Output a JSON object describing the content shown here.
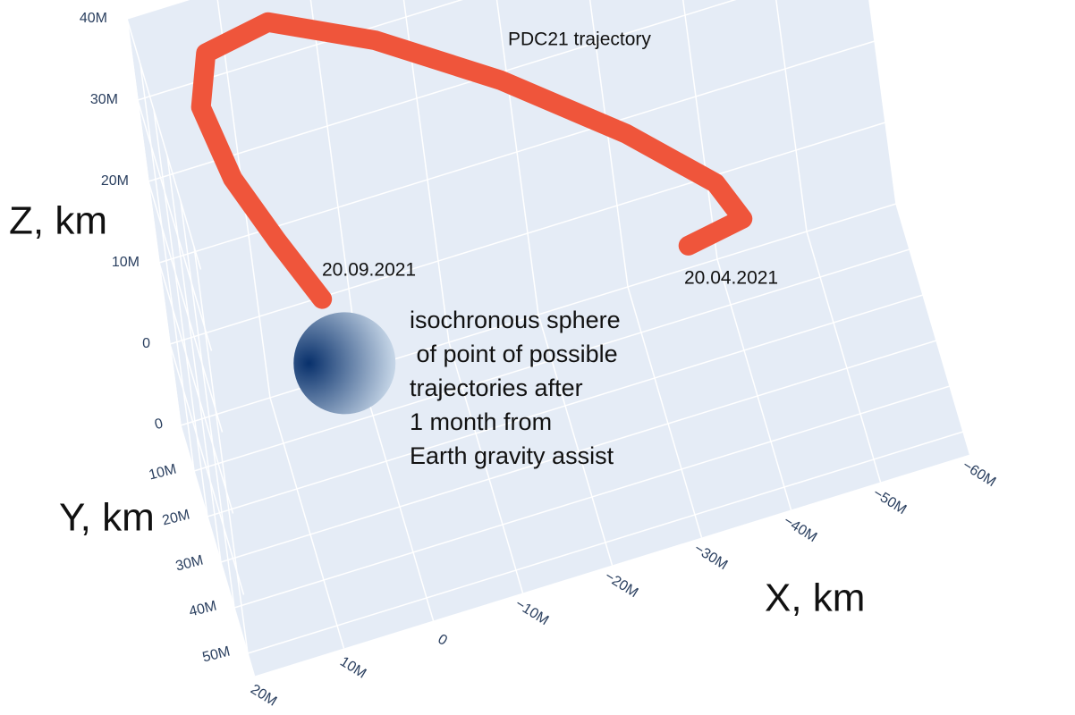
{
  "chart_data": {
    "type": "line3d",
    "series": [
      {
        "name": "PDC21 trajectory",
        "color": "#ef553b",
        "x": [
          -35500000,
          -41700000,
          -39300000,
          -30400000,
          -17700000,
          -4800000,
          6500000,
          13600000,
          14900000,
          12500000,
          8600000,
          4600000
        ],
        "y": [
          20000000,
          20000000,
          20000000,
          20000000,
          20000000,
          20000000,
          20000000,
          20000000,
          20000000,
          20000000,
          20000000,
          20000000
        ],
        "z": [
          4400000,
          5600000,
          10800000,
          19900000,
          30800000,
          40100000,
          46200000,
          44800000,
          38600000,
          29000000,
          20000000,
          11500000
        ]
      }
    ],
    "sphere": {
      "x": 3100000,
      "y": 20000000,
      "z": 3100000,
      "radius": 5700000,
      "colors": [
        "#08306b",
        "#deebf7"
      ]
    },
    "annotations": [
      "20.09.2021",
      "20.04.2021"
    ],
    "note": [
      "isochronous sphere",
      " of point of possible",
      "trajectories after",
      "1 month from",
      "Earth gravity assist"
    ],
    "xlabel": "X, km",
    "ylabel": "Y, km",
    "zlabel": "Z, km",
    "xlim": [
      -60000000,
      20000000
    ],
    "ylim": [
      0,
      55000000
    ],
    "zlim": [
      -10000000,
      40000000
    ],
    "xticks": [
      {
        "value": -60000000,
        "label": "−60M"
      },
      {
        "value": -50000000,
        "label": "−50M"
      },
      {
        "value": -40000000,
        "label": "−40M"
      },
      {
        "value": -30000000,
        "label": "−30M"
      },
      {
        "value": -20000000,
        "label": "−20M"
      },
      {
        "value": -10000000,
        "label": "−10M"
      },
      0,
      {
        "value": 10000000,
        "label": "10M"
      },
      {
        "value": 20000000,
        "label": "20M"
      }
    ],
    "yticks": [
      0,
      {
        "value": 10000000,
        "label": "10M"
      },
      {
        "value": 20000000,
        "label": "20M"
      },
      {
        "value": 30000000,
        "label": "30M"
      },
      {
        "value": 40000000,
        "label": "40M"
      },
      {
        "value": 50000000,
        "label": "50M"
      }
    ],
    "zticks": [
      0,
      {
        "value": 10000000,
        "label": "10M"
      },
      {
        "value": 20000000,
        "label": "20M"
      },
      {
        "value": 30000000,
        "label": "30M"
      },
      {
        "value": 40000000,
        "label": "40M"
      }
    ],
    "grid": true
  }
}
